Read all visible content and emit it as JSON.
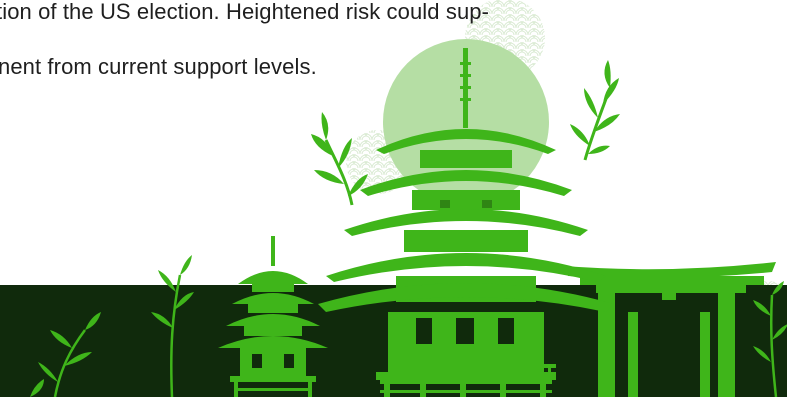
{
  "document": {
    "paragraph_lines": [
      "tion of the US election. Heightened risk could sup-",
      "nent from current support levels."
    ]
  },
  "illustration": {
    "icons": [
      "sun-disc-icon",
      "pagoda-icon",
      "small-pagoda-icon",
      "torii-gate-icon",
      "bamboo-icon",
      "wave-pattern-icon"
    ],
    "colors": {
      "green": "#3fb51a",
      "dark_band": "#102a0c",
      "sun": "#b5deA4",
      "pattern": "#d9ead2",
      "background": "#ffffff",
      "text": "#1f1f1f"
    }
  }
}
